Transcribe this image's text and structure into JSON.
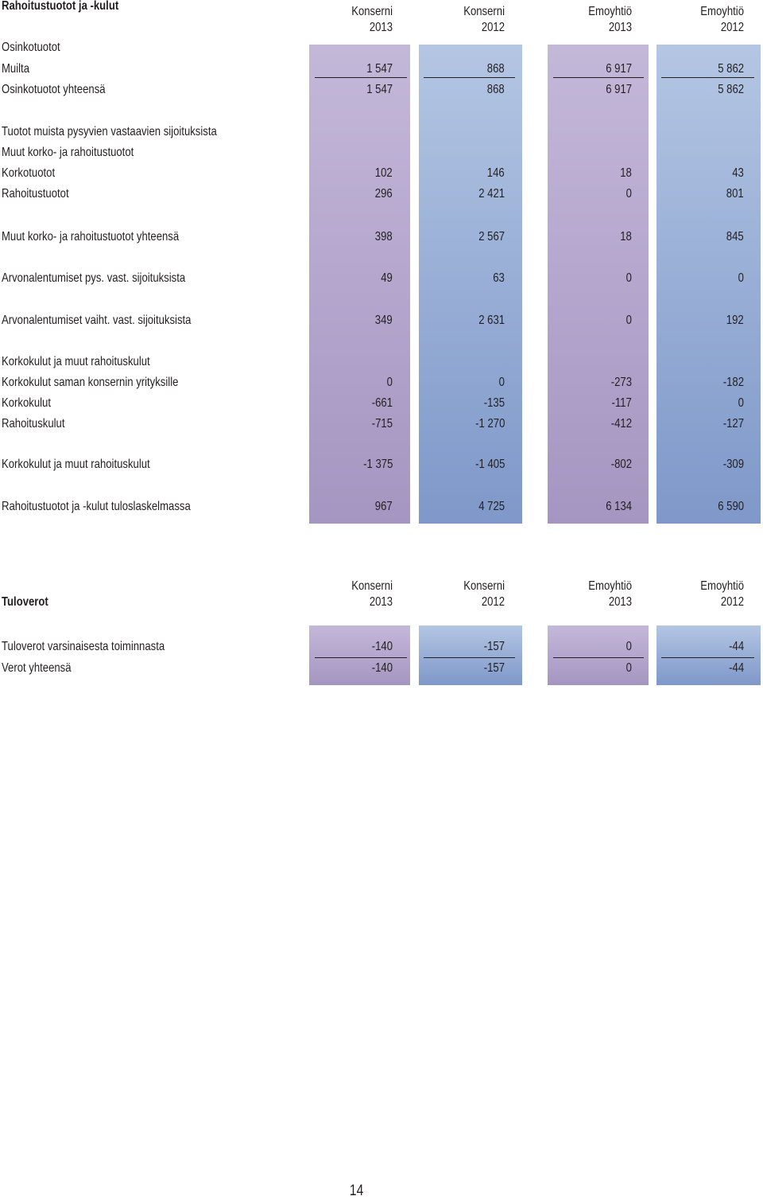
{
  "page_number": "14",
  "income": {
    "title": "Rahoitustuotot ja -kulut",
    "columns": [
      {
        "entity": "Konserni",
        "year": "2013"
      },
      {
        "entity": "Konserni",
        "year": "2012"
      },
      {
        "entity": "Emoyhtiö",
        "year": "2013"
      },
      {
        "entity": "Emoyhtiö",
        "year": "2012"
      }
    ],
    "rows": [
      {
        "label": "Osinkotuotot",
        "values": []
      },
      {
        "label": "Muilta",
        "values": [
          "1 547",
          "868",
          "6 917",
          "5 862"
        ]
      },
      {
        "label": "Osinkotuotot yhteensä",
        "values": [
          "1 547",
          "868",
          "6 917",
          "5 862"
        ]
      },
      {
        "label": "Tuotot muista pysyvien vastaavien sijoituksista",
        "values": []
      },
      {
        "label": "Muut korko- ja rahoitustuotot",
        "values": []
      },
      {
        "label": "Korkotuotot",
        "values": [
          "102",
          "146",
          "18",
          "43"
        ]
      },
      {
        "label": "Rahoitustuotot",
        "values": [
          "296",
          "2 421",
          "0",
          "801"
        ]
      },
      {
        "label": "Muut korko- ja rahoitustuotot yhteensä",
        "values": [
          "398",
          "2 567",
          "18",
          "845"
        ]
      },
      {
        "label": "Arvonalentumiset pys. vast. sijoituksista",
        "values": [
          "49",
          "63",
          "0",
          "0"
        ]
      },
      {
        "label": "Arvonalentumiset vaiht. vast. sijoituksista",
        "values": [
          "349",
          "2 631",
          "0",
          "192"
        ]
      },
      {
        "label": "Korkokulut ja muut rahoituskulut",
        "values": []
      },
      {
        "label": "Korkokulut saman konsernin yrityksille",
        "values": [
          "0",
          "0",
          "-273",
          "-182"
        ]
      },
      {
        "label": "Korkokulut",
        "values": [
          "-661",
          "-135",
          "-117",
          "0"
        ]
      },
      {
        "label": "Rahoituskulut",
        "values": [
          "-715",
          "-1 270",
          "-412",
          "-127"
        ]
      },
      {
        "label": "Korkokulut ja muut rahoituskulut",
        "values": [
          "-1 375",
          "-1 405",
          "-802",
          "-309"
        ]
      },
      {
        "label": "Rahoitustuotot ja -kulut tuloslaskelmassa",
        "values": [
          "967",
          "4 725",
          "6 134",
          "6 590"
        ]
      }
    ]
  },
  "tax": {
    "title": "Tuloverot",
    "columns": [
      {
        "entity": "Konserni",
        "year": "2013"
      },
      {
        "entity": "Konserni",
        "year": "2012"
      },
      {
        "entity": "Emoyhtiö",
        "year": "2013"
      },
      {
        "entity": "Emoyhtiö",
        "year": "2012"
      }
    ],
    "rows": [
      {
        "label": "Tuloverot varsinaisesta toiminnasta",
        "values": [
          "-140",
          "-157",
          "0",
          "-44"
        ]
      },
      {
        "label": "Verot yhteensä",
        "values": [
          "-140",
          "-157",
          "0",
          "-44"
        ]
      }
    ]
  },
  "colors": {
    "purple_column": "#b4a6cd",
    "blue_column": "#98aed6",
    "text": "#231f20"
  }
}
